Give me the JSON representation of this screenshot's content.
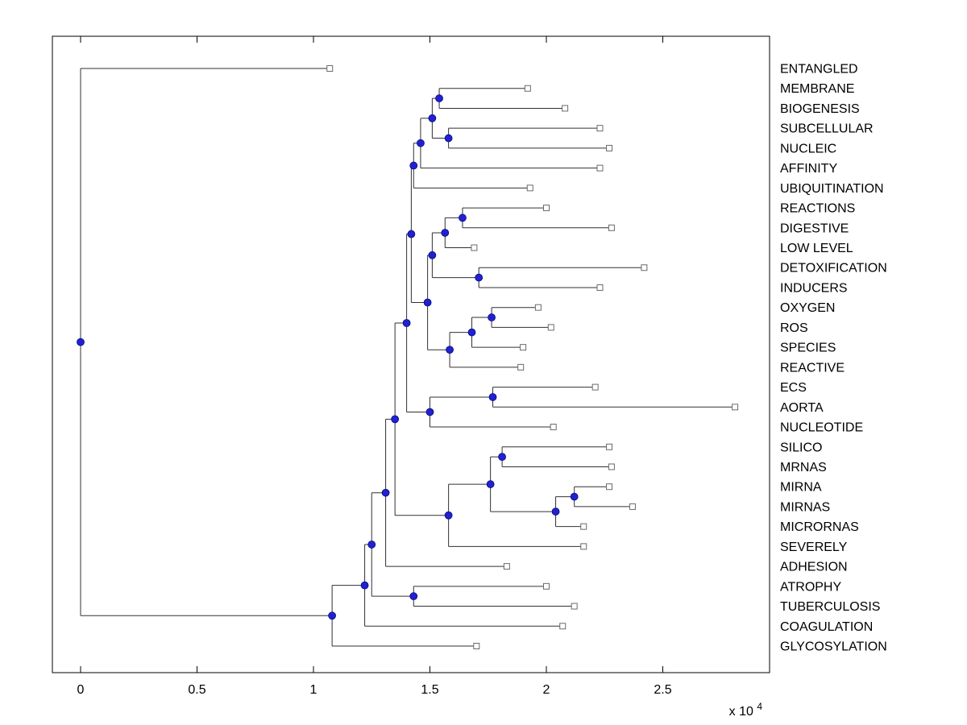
{
  "window": {
    "background": "#ffffff"
  },
  "chart_data": {
    "type": "dendrogram",
    "title": "",
    "orientation": "horizontal-left-to-right",
    "legend": "none",
    "grid": false,
    "x_axis": {
      "tick_values": [
        0,
        5000,
        10000,
        15000,
        20000,
        25000
      ],
      "tick_labels": [
        "0",
        "0.5",
        "1",
        "1.5",
        "2",
        "2.5"
      ],
      "exponent_prefix": "x 10",
      "exponent": "4",
      "xlim": [
        -1250,
        29600
      ]
    },
    "leaf_labels": [
      "ENTANGLED",
      "MEMBRANE",
      "BIOGENESIS",
      "SUBCELLULAR",
      "NUCLEIC",
      "AFFINITY",
      "UBIQUITINATION",
      "REACTIONS",
      "DIGESTIVE",
      "LOW LEVEL",
      "DETOXIFICATION",
      "INDUCERS",
      "OXYGEN",
      "ROS",
      "SPECIES",
      "REACTIVE",
      "ECS",
      "AORTA",
      "NUCLEOTIDE",
      "SILICO",
      "MRNAS",
      "MIRNA",
      "MIRNAS",
      "MICRORNAS",
      "SEVERELY",
      "ADHESION",
      "ATROPHY",
      "TUBERCULOSIS",
      "COAGULATION",
      "GLYCOSYLATION"
    ],
    "style": {
      "line_color": "#303030",
      "box_color": "#000000",
      "leaf_marker": "open-square",
      "leaf_marker_color": "#6a6a6a",
      "node_marker": "filled-circle",
      "node_marker_color": "#2222cc",
      "node_marker_edge": "#00008b",
      "label_color": "#000000"
    },
    "tree": {
      "x": 0,
      "children": [
        {
          "label": "ENTANGLED",
          "x": 10700
        },
        {
          "x": 10800,
          "children": [
            {
              "x": 12200,
              "children": [
                {
                  "x": 12500,
                  "children": [
                    {
                      "x": 13100,
                      "children": [
                        {
                          "x": 13500,
                          "children": [
                            {
                              "x": 14000,
                              "children": [
                                {
                                  "x": 14200,
                                  "children": [
                                    {
                                      "x": 14300,
                                      "children": [
                                        {
                                          "x": 14600,
                                          "children": [
                                            {
                                              "x": 15100,
                                              "children": [
                                                {
                                                  "x": 15400,
                                                  "children": [
                                                    {
                                                      "label": "MEMBRANE",
                                                      "x": 19200
                                                    },
                                                    {
                                                      "label": "BIOGENESIS",
                                                      "x": 20800
                                                    }
                                                  ]
                                                },
                                                {
                                                  "x": 15800,
                                                  "children": [
                                                    {
                                                      "label": "SUBCELLULAR",
                                                      "x": 22300
                                                    },
                                                    {
                                                      "label": "NUCLEIC",
                                                      "x": 22700
                                                    }
                                                  ]
                                                }
                                              ]
                                            },
                                            {
                                              "label": "AFFINITY",
                                              "x": 22300
                                            }
                                          ]
                                        },
                                        {
                                          "label": "UBIQUITINATION",
                                          "x": 19300
                                        }
                                      ]
                                    },
                                    {
                                      "x": 14900,
                                      "children": [
                                        {
                                          "x": 15100,
                                          "children": [
                                            {
                                              "x": 15650,
                                              "children": [
                                                {
                                                  "x": 16400,
                                                  "children": [
                                                    {
                                                      "label": "REACTIONS",
                                                      "x": 20000
                                                    },
                                                    {
                                                      "label": "DIGESTIVE",
                                                      "x": 22800
                                                    }
                                                  ]
                                                },
                                                {
                                                  "label": "LOW LEVEL",
                                                  "x": 16900
                                                }
                                              ]
                                            },
                                            {
                                              "x": 17100,
                                              "children": [
                                                {
                                                  "label": "DETOXIFICATION",
                                                  "x": 24200
                                                },
                                                {
                                                  "label": "INDUCERS",
                                                  "x": 22300
                                                }
                                              ]
                                            }
                                          ]
                                        },
                                        {
                                          "x": 15850,
                                          "children": [
                                            {
                                              "x": 16800,
                                              "children": [
                                                {
                                                  "x": 17650,
                                                  "children": [
                                                    {
                                                      "label": "OXYGEN",
                                                      "x": 19650
                                                    },
                                                    {
                                                      "label": "ROS",
                                                      "x": 20200
                                                    }
                                                  ]
                                                },
                                                {
                                                  "label": "SPECIES",
                                                  "x": 19000
                                                }
                                              ]
                                            },
                                            {
                                              "label": "REACTIVE",
                                              "x": 18900
                                            }
                                          ]
                                        }
                                      ]
                                    }
                                  ]
                                },
                                {
                                  "x": 15000,
                                  "children": [
                                    {
                                      "x": 17700,
                                      "children": [
                                        {
                                          "label": "ECS",
                                          "x": 22100
                                        },
                                        {
                                          "label": "AORTA",
                                          "x": 28100
                                        }
                                      ]
                                    },
                                    {
                                      "label": "NUCLEOTIDE",
                                      "x": 20300
                                    }
                                  ]
                                }
                              ]
                            },
                            {
                              "x": 15800,
                              "children": [
                                {
                                  "x": 17600,
                                  "children": [
                                    {
                                      "x": 18100,
                                      "children": [
                                        {
                                          "label": "SILICO",
                                          "x": 22700
                                        },
                                        {
                                          "label": "MRNAS",
                                          "x": 22800
                                        }
                                      ]
                                    },
                                    {
                                      "x": 20400,
                                      "children": [
                                        {
                                          "x": 21200,
                                          "children": [
                                            {
                                              "label": "MIRNA",
                                              "x": 22700
                                            },
                                            {
                                              "label": "MIRNAS",
                                              "x": 23700
                                            }
                                          ]
                                        },
                                        {
                                          "label": "MICRORNAS",
                                          "x": 21600
                                        }
                                      ]
                                    }
                                  ]
                                },
                                {
                                  "label": "SEVERELY",
                                  "x": 21600
                                }
                              ]
                            }
                          ]
                        },
                        {
                          "label": "ADHESION",
                          "x": 18300
                        }
                      ]
                    },
                    {
                      "x": 14300,
                      "children": [
                        {
                          "label": "ATROPHY",
                          "x": 20000
                        },
                        {
                          "label": "TUBERCULOSIS",
                          "x": 21200
                        }
                      ]
                    }
                  ]
                },
                {
                  "label": "COAGULATION",
                  "x": 20700
                }
              ]
            },
            {
              "label": "GLYCOSYLATION",
              "x": 17000
            }
          ]
        }
      ]
    }
  }
}
